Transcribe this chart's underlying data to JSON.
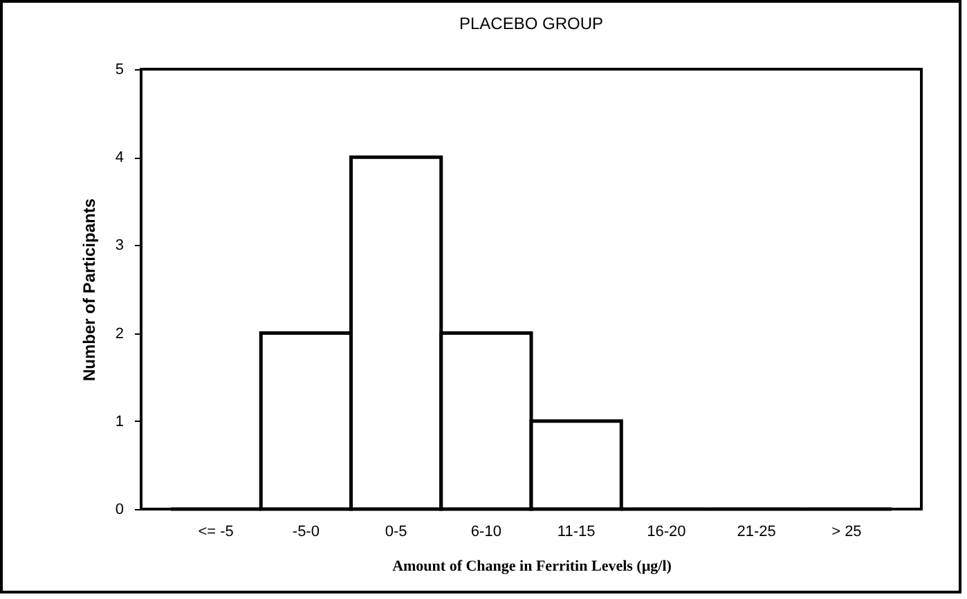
{
  "chart_data": {
    "type": "bar",
    "title": "PLACEBO GROUP",
    "xlabel": "Amount of Change in Ferritin Levels (µg/l)",
    "ylabel": "Number of Participants",
    "categories": [
      "<= -5",
      "-5-0",
      "0-5",
      "6-10",
      "11-15",
      "16-20",
      "21-25",
      "> 25"
    ],
    "values": [
      0,
      2,
      4,
      2,
      1,
      0,
      0,
      0
    ],
    "colors": [
      "#000000",
      "#ffffff",
      "#ffffff",
      "#ffffff",
      "#ffffff",
      "#000000",
      "#000000",
      "#000000"
    ],
    "ylim": [
      0,
      5
    ],
    "yticks": [
      0,
      1,
      2,
      3,
      4,
      5
    ],
    "grid": false
  }
}
